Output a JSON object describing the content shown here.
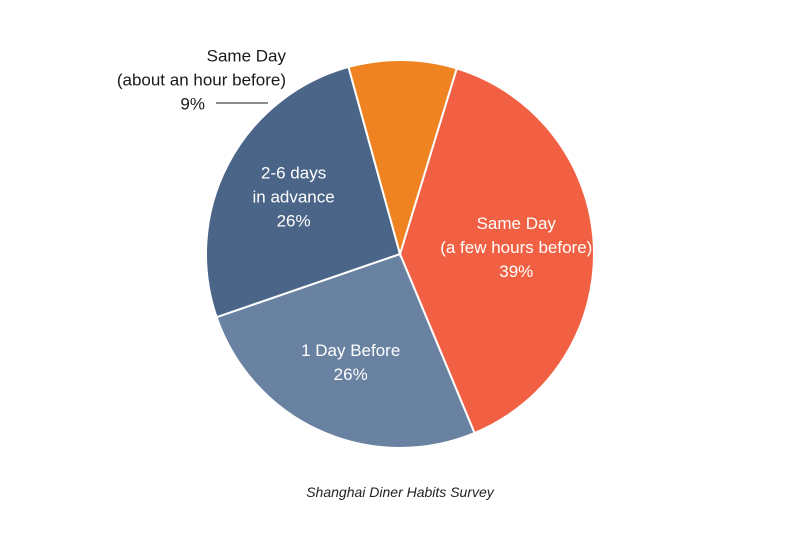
{
  "chart_data": {
    "type": "pie",
    "title": "",
    "caption": "Shanghai Diner Habits Survey",
    "slices": [
      {
        "label_lines": [
          "Same Day",
          "(a few hours before)"
        ],
        "value": 39,
        "value_label": "39%",
        "color": "#f26043",
        "label_position": "inside"
      },
      {
        "label_lines": [
          "1 Day Before"
        ],
        "value": 26,
        "value_label": "26%",
        "color": "#6a82a1",
        "label_position": "inside"
      },
      {
        "label_lines": [
          "2-6 days",
          "in advance"
        ],
        "value": 26,
        "value_label": "26%",
        "color": "#4a6588",
        "label_position": "inside"
      },
      {
        "label_lines": [
          "Same Day",
          "(about an hour before)"
        ],
        "value": 9,
        "value_label": "9%",
        "color": "#ef8321",
        "label_position": "outside-with-leader"
      }
    ],
    "start_angle_deg": 17,
    "direction": "clockwise"
  }
}
